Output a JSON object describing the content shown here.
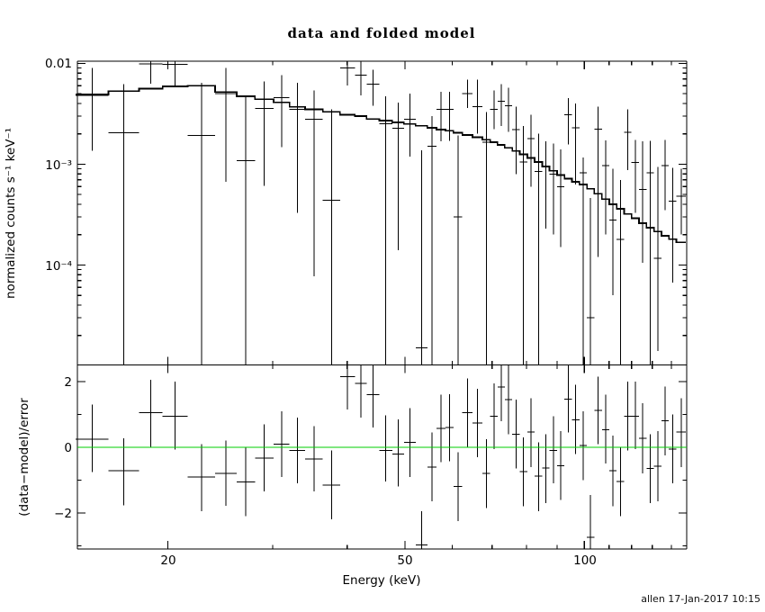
{
  "title": "data and folded model",
  "watermark": "allen 17-Jan-2017 10:15",
  "axes": {
    "x_label": "Energy (keV)",
    "x_range": [
      14.1,
      148.5
    ],
    "x_major_ticks": [
      20,
      50,
      100
    ],
    "x_major_labels": [
      "20",
      "50",
      "100"
    ],
    "x_minor_ticks": [
      30,
      40,
      60,
      70,
      80,
      90,
      110,
      120,
      130,
      140
    ],
    "top": {
      "label": "normalized counts s⁻¹ keV⁻¹",
      "tick_labels": [
        "0.01",
        "10⁻³",
        "10⁻⁴"
      ],
      "tick_values": [
        0.01,
        0.001,
        0.0001
      ],
      "range": [
        1.02e-05,
        0.0105
      ],
      "scale": "log"
    },
    "bottom": {
      "label": "(data−model)/error",
      "tick_labels": [
        "2",
        "0",
        "−2"
      ],
      "tick_values": [
        2,
        0,
        -2
      ],
      "minor_tick_values": [
        1,
        -1,
        -3
      ],
      "range": [
        -3.1,
        2.51
      ],
      "scale": "linear"
    }
  },
  "colors": {
    "frame": "#000000",
    "data": "#000000",
    "model": "#000000",
    "zero_line": "#00cc00",
    "background": "#ffffff"
  },
  "chart_data": [
    {
      "type": "line",
      "name": "spectrum-and-folded-model",
      "x_scale": "log",
      "y_scale": "log",
      "ylabel": "normalized counts s⁻¹ keV⁻¹",
      "xlabel": "Energy (keV)",
      "bin_edges_keV": [
        14.0,
        15.9,
        17.9,
        19.6,
        21.6,
        24.0,
        26.1,
        28.0,
        30.1,
        32.0,
        34.0,
        36.4,
        38.9,
        41.2,
        43.1,
        45.3,
        47.6,
        49.8,
        52.1,
        54.5,
        56.5,
        58.5,
        60.3,
        62.4,
        64.9,
        67.4,
        69.5,
        71.5,
        73.5,
        75.7,
        77.9,
        80.2,
        82.5,
        85.0,
        87.4,
        90.0,
        92.6,
        95.3,
        98.1,
        101.0,
        103.9,
        107.0,
        110.1,
        113.3,
        116.6,
        120.0,
        123.5,
        127.1,
        130.9,
        134.7,
        138.6,
        142.7,
        148.0
      ],
      "model": [
        0.0049,
        0.0053,
        0.0056,
        0.0059,
        0.006,
        0.0052,
        0.0047,
        0.0044,
        0.0041,
        0.0037,
        0.0035,
        0.0033,
        0.0031,
        0.003,
        0.0028,
        0.0027,
        0.0026,
        0.0025,
        0.0024,
        0.0023,
        0.0022,
        0.00215,
        0.00205,
        0.00195,
        0.00185,
        0.00175,
        0.00165,
        0.00155,
        0.00145,
        0.00135,
        0.00125,
        0.00115,
        0.00105,
        0.00095,
        0.00086,
        0.00078,
        0.00072,
        0.00067,
        0.00063,
        0.00057,
        0.00051,
        0.00045,
        0.0004,
        0.00036,
        0.00032,
        0.00029,
        0.00026,
        0.000235,
        0.000215,
        0.000195,
        0.00018,
        0.000168
      ],
      "data": [
        0.0048,
        0.00204,
        0.0099,
        0.0098,
        0.00193,
        0.005,
        0.00108,
        0.00358,
        0.00455,
        0.0035,
        0.0028,
        0.00044,
        0.009,
        0.0076,
        0.0062,
        0.00252,
        0.00228,
        0.0028,
        1.5e-05,
        0.0015,
        0.0035,
        0.0035,
        0.0003,
        0.005,
        0.0037,
        0.00165,
        0.0035,
        0.0042,
        0.0038,
        0.0022,
        0.00105,
        0.0018,
        0.00085,
        0.00094,
        0.0008,
        0.0006,
        0.0031,
        0.0023,
        0.00082,
        3e-05,
        0.00223,
        0.00097,
        0.00028,
        0.00018,
        0.00207,
        0.00104,
        0.00056,
        0.00082,
        0.000117,
        0.00097,
        0.00043,
        0.00048
      ],
      "err_lo": [
        0.00136,
        1e-06,
        0.0063,
        0.006,
        1e-06,
        0.00067,
        1e-06,
        0.00061,
        0.00147,
        0.00033,
        7.7e-05,
        1e-06,
        0.006,
        0.0048,
        0.0038,
        1e-06,
        0.00014,
        0.00119,
        1e-07,
        1e-06,
        0.00168,
        0.0017,
        1e-06,
        0.0036,
        0.002,
        1e-06,
        0.00223,
        0.0024,
        0.0021,
        0.0008,
        1e-06,
        0.0006,
        1e-06,
        0.00023,
        0.0002,
        0.00015,
        0.00157,
        0.00063,
        1e-06,
        1e-07,
        0.00012,
        0.0002,
        5e-05,
        1e-06,
        0.00087,
        0.00033,
        0.000105,
        1e-06,
        1.4e-05,
        0.00035,
        6.7e-05,
        0.0002
      ],
      "err_hi": [
        0.009,
        0.0062,
        0.014,
        0.014,
        0.0064,
        0.009,
        0.0047,
        0.0066,
        0.0076,
        0.0064,
        0.0054,
        0.0035,
        0.012,
        0.0104,
        0.0086,
        0.0047,
        0.0041,
        0.005,
        0.00137,
        0.003,
        0.0052,
        0.0052,
        0.00193,
        0.0069,
        0.0069,
        0.0033,
        0.0054,
        0.0062,
        0.0057,
        0.0037,
        0.0024,
        0.0031,
        0.002,
        0.00168,
        0.0016,
        0.0014,
        0.0045,
        0.004,
        0.00116,
        0.00046,
        0.0037,
        0.00172,
        0.0009,
        0.0007,
        0.0035,
        0.00174,
        0.00168,
        0.0017,
        0.00094,
        0.00174,
        0.00092,
        0.0009
      ]
    },
    {
      "type": "scatter",
      "name": "residuals",
      "ylabel": "(data−model)/error",
      "zero_line": 0,
      "r": [
        0.25,
        -0.72,
        1.06,
        0.95,
        -0.9,
        -0.8,
        -1.05,
        -0.33,
        0.1,
        -0.1,
        -0.35,
        -1.15,
        2.15,
        1.95,
        1.6,
        -0.1,
        -0.2,
        0.15,
        -2.97,
        -0.6,
        0.58,
        0.6,
        -1.2,
        1.06,
        0.74,
        -0.79,
        0.95,
        1.84,
        1.45,
        0.4,
        -0.74,
        0.47,
        -0.88,
        -0.63,
        -0.1,
        -0.56,
        1.47,
        0.83,
        0.05,
        -2.75,
        1.13,
        0.54,
        -0.72,
        -1.04,
        0.95,
        0.95,
        0.27,
        -0.65,
        -0.58,
        0.81,
        -0.05,
        0.47
      ],
      "r_lo": [
        -0.75,
        -1.77,
        0.0,
        -0.07,
        -1.95,
        -1.79,
        -2.1,
        -1.35,
        -0.9,
        -1.1,
        -1.35,
        -2.2,
        1.15,
        0.9,
        0.6,
        -1.04,
        -1.2,
        -0.9,
        -5,
        -1.65,
        -0.45,
        -0.42,
        -2.25,
        0.0,
        -0.3,
        -1.85,
        -0.05,
        0.8,
        0.4,
        -0.65,
        -1.8,
        -0.6,
        -1.95,
        -1.7,
        -1.1,
        -1.6,
        0.45,
        -0.2,
        -1.0,
        -5,
        0.1,
        -0.5,
        -1.8,
        -2.1,
        -0.1,
        -0.05,
        -0.8,
        -1.7,
        -1.65,
        -0.25,
        -1.1,
        -0.6
      ],
      "r_hi": [
        1.3,
        0.28,
        2.06,
        2.0,
        0.1,
        0.21,
        0.0,
        0.7,
        1.1,
        0.9,
        0.65,
        -0.1,
        5,
        5,
        2.6,
        0.97,
        0.85,
        1.2,
        -1.95,
        0.45,
        1.6,
        1.62,
        -0.15,
        2.1,
        1.78,
        0.25,
        1.95,
        5,
        2.5,
        1.45,
        0.3,
        1.5,
        0.15,
        0.4,
        0.95,
        0.5,
        2.5,
        1.9,
        1.1,
        -1.45,
        2.15,
        1.6,
        0.35,
        0.0,
        2.0,
        2.0,
        1.35,
        0.4,
        0.5,
        1.85,
        1.0,
        1.5
      ]
    }
  ]
}
